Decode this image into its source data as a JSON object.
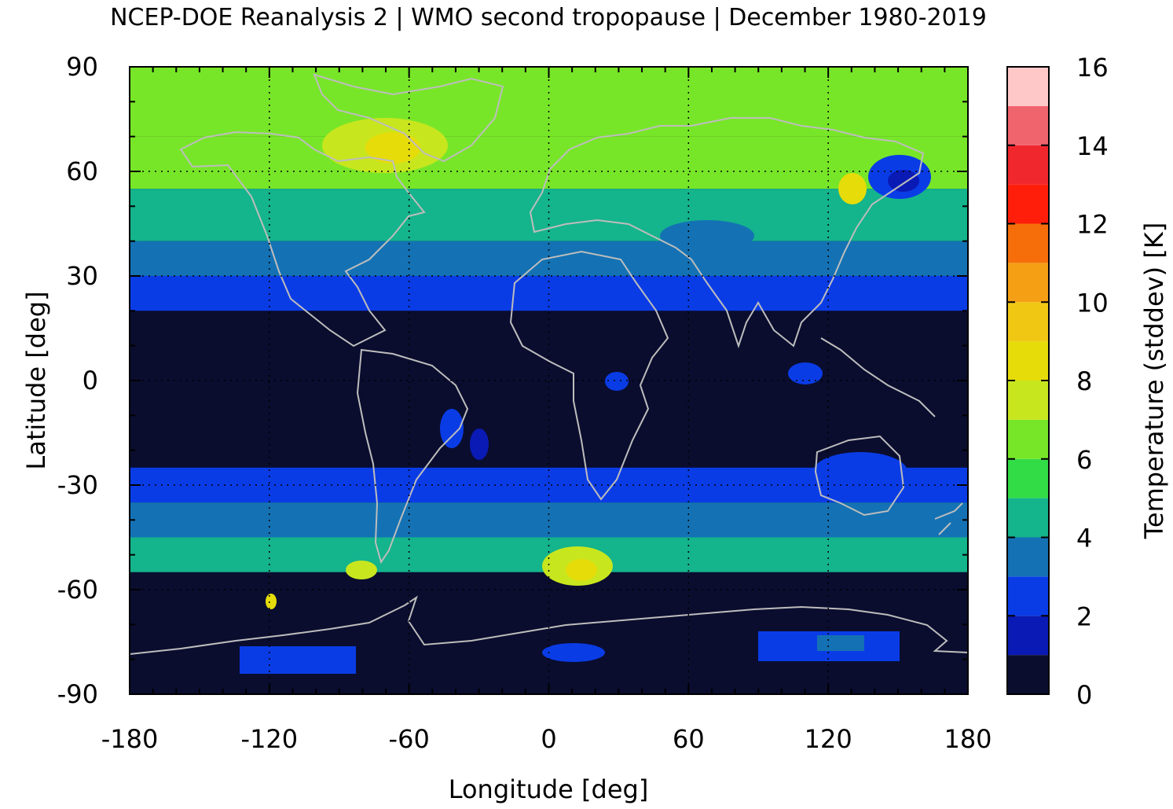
{
  "chart_data": {
    "type": "heatmap",
    "title": "NCEP-DOE Reanalysis 2 | WMO second tropopause | December 1980-2019",
    "xlabel": "Longitude [deg]",
    "ylabel": "Latitude [deg]",
    "xlim": [
      -180,
      180
    ],
    "ylim": [
      -90,
      90
    ],
    "xticks": [
      -180,
      -120,
      -60,
      0,
      60,
      120,
      180
    ],
    "yticks": [
      -90,
      -60,
      -30,
      0,
      30,
      60,
      90
    ],
    "x_tick_labels": [
      "-180",
      "-120",
      "-60",
      "0",
      "60",
      "120",
      "180"
    ],
    "y_tick_labels": [
      "-90",
      "-60",
      "-30",
      "0",
      "30",
      "60",
      "90"
    ],
    "grid": true,
    "coastlines": true,
    "colorbar": {
      "label": "Temperature (stddev) [K]",
      "range": [
        0,
        16
      ],
      "ticks": [
        "0",
        "2",
        "4",
        "6",
        "8",
        "10",
        "12",
        "14",
        "16"
      ],
      "step": 1,
      "colors": [
        "#0a0d2e",
        "#0a1ab4",
        "#0a3ce6",
        "#1472b4",
        "#14b48c",
        "#32dc46",
        "#78e628",
        "#c8e61e",
        "#e6dc0a",
        "#f0c814",
        "#f5a014",
        "#f56e0a",
        "#ff1e0a",
        "#f0282d",
        "#f0646e",
        "#ffc8c8"
      ]
    },
    "value_bands": [
      {
        "lat_range": [
          70,
          90
        ],
        "value": 6.5
      },
      {
        "lat_range": [
          55,
          70
        ],
        "value": 6.0
      },
      {
        "lat_range": [
          40,
          55
        ],
        "value": 4.5
      },
      {
        "lat_range": [
          30,
          40
        ],
        "value": 3.5
      },
      {
        "lat_range": [
          20,
          30
        ],
        "value": 2.5
      },
      {
        "lat_range": [
          -25,
          20
        ],
        "value": 0.5
      },
      {
        "lat_range": [
          -35,
          -25
        ],
        "value": 2.5
      },
      {
        "lat_range": [
          -45,
          -35
        ],
        "value": 3.5
      },
      {
        "lat_range": [
          -55,
          -45
        ],
        "value": 4.5
      },
      {
        "lat_range": [
          -90,
          -55
        ],
        "value": 0.5
      }
    ]
  }
}
